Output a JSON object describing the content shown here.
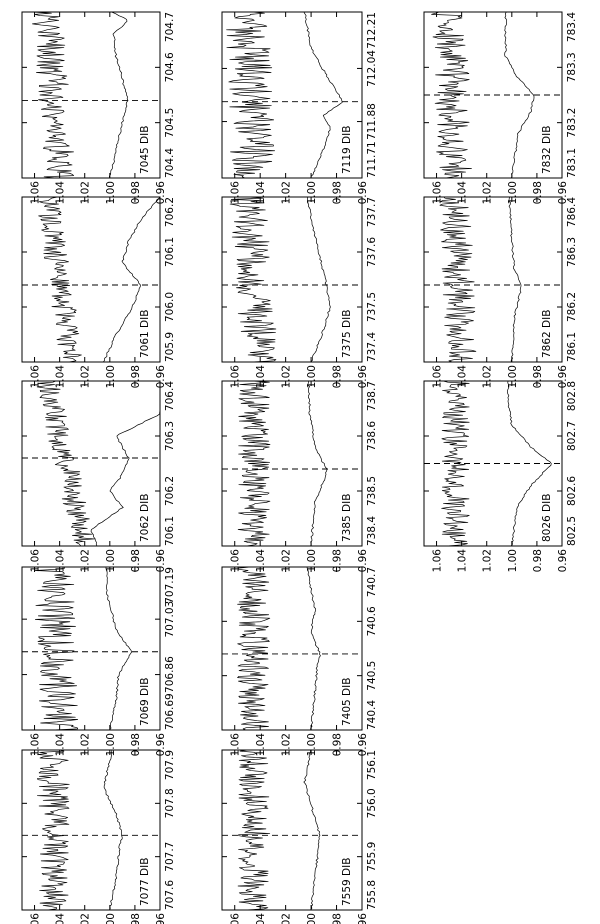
{
  "chart_data": {
    "type": "line",
    "orientation": "rotated-90-ccw",
    "panel_y_axis": {
      "ylim": [
        0.96,
        1.07
      ],
      "tick_labels": [
        "0.96",
        "0.98",
        "1.00",
        "1.02",
        "1.04",
        "1.06"
      ]
    },
    "panels": [
      {
        "id": "p7045",
        "label": "7045 DIB",
        "xlim": [
          704.4,
          704.7
        ],
        "x_ticks": [
          "704.4",
          "704.5",
          "704.6",
          "704.7"
        ],
        "center": 704.54,
        "series": [
          {
            "x": [
              704.4,
              704.45,
              704.5,
              704.54,
              704.58,
              704.62,
              704.66,
              704.685,
              704.7
            ],
            "y": [
              1.0,
              0.995,
              0.99,
              0.986,
              0.99,
              0.995,
              0.997,
              0.985,
              0.998
            ]
          },
          {
            "x": [
              704.4,
              704.7
            ],
            "y": [
              1.04,
              1.05
            ],
            "noise": 0.016
          }
        ]
      },
      {
        "id": "p7061",
        "label": "7061 DIB",
        "xlim": [
          705.9,
          706.2
        ],
        "x_ticks": [
          "705.9",
          "706.0",
          "706.1",
          "706.2"
        ],
        "center": 706.04,
        "series": [
          {
            "x": [
              705.9,
              705.95,
              706.0,
              706.04,
              706.08,
              706.12,
              706.16,
              706.2
            ],
            "y": [
              1.005,
              0.995,
              0.982,
              0.975,
              0.99,
              0.985,
              0.975,
              0.96
            ]
          },
          {
            "x": [
              705.9,
              706.2
            ],
            "y": [
              1.03,
              1.05
            ],
            "noise": 0.012
          }
        ]
      },
      {
        "id": "p7062",
        "label": "7062 DIB",
        "xlim": [
          706.1,
          706.4
        ],
        "x_ticks": [
          "706.1",
          "706.2",
          "706.3",
          "706.4"
        ],
        "center": 706.26,
        "series": [
          {
            "x": [
              706.1,
              706.13,
              706.17,
              706.2,
              706.23,
              706.26,
              706.3,
              706.34,
              706.4
            ],
            "y": [
              1.01,
              1.015,
              0.99,
              1.0,
              0.99,
              0.985,
              0.995,
              0.96,
              0.955
            ]
          },
          {
            "x": [
              706.1,
              706.4
            ],
            "y": [
              1.02,
              1.05
            ],
            "noise": 0.012
          }
        ]
      },
      {
        "id": "p7069",
        "label": "7069 DIB",
        "xlim": [
          706.69,
          707.19
        ],
        "x_ticks": [
          "706.69",
          "706.86",
          "707.03",
          "707.19"
        ],
        "center": 706.93,
        "series": [
          {
            "x": [
              706.69,
              706.78,
              706.86,
              706.93,
              707.0,
              707.1,
              707.19
            ],
            "y": [
              1.0,
              0.995,
              0.993,
              0.983,
              0.995,
              1.002,
              1.003
            ]
          },
          {
            "x": [
              706.69,
              707.19
            ],
            "y": [
              1.04,
              1.045
            ],
            "noise": 0.02
          }
        ]
      },
      {
        "id": "p7077",
        "label": "7077 DIB",
        "xlim": [
          707.6,
          707.9
        ],
        "x_ticks": [
          "707.6",
          "707.7",
          "707.8",
          "707.9"
        ],
        "center": 707.74,
        "series": [
          {
            "x": [
              707.6,
              707.66,
              707.72,
              707.74,
              707.78,
              707.83,
              707.9
            ],
            "y": [
              1.0,
              0.995,
              0.992,
              0.99,
              0.995,
              1.005,
              0.998
            ]
          },
          {
            "x": [
              707.6,
              707.9
            ],
            "y": [
              1.045,
              1.045
            ],
            "noise": 0.016
          }
        ]
      },
      {
        "id": "p7119",
        "label": "7119 DIB",
        "xlim": [
          711.71,
          712.21
        ],
        "x_ticks": [
          "711.71",
          "711.88",
          "712.04",
          "712.21"
        ],
        "center": 711.94,
        "series": [
          {
            "x": [
              711.71,
              711.8,
              711.86,
              711.9,
              711.94,
              712.0,
              712.1,
              712.21
            ],
            "y": [
              1.0,
              0.99,
              0.985,
              0.99,
              0.975,
              0.985,
              1.0,
              1.005
            ]
          },
          {
            "x": [
              711.71,
              712.21
            ],
            "y": [
              1.045,
              1.05
            ],
            "noise": 0.022
          }
        ]
      },
      {
        "id": "p7375",
        "label": "7375 DIB",
        "xlim": [
          737.4,
          737.7
        ],
        "x_ticks": [
          "737.4",
          "737.5",
          "737.6",
          "737.7"
        ],
        "center": 737.54,
        "series": [
          {
            "x": [
              737.4,
              737.46,
              737.5,
              737.54,
              737.6,
              737.66,
              737.7
            ],
            "y": [
              1.0,
              0.99,
              0.985,
              0.988,
              0.994,
              1.0,
              1.003
            ]
          },
          {
            "x": [
              737.4,
              737.7
            ],
            "y": [
              1.04,
              1.05
            ],
            "noise": 0.018
          }
        ]
      },
      {
        "id": "p7385",
        "label": "7385 DIB",
        "xlim": [
          738.4,
          738.7
        ],
        "x_ticks": [
          "738.4",
          "738.5",
          "738.6",
          "738.7"
        ],
        "center": 738.54,
        "series": [
          {
            "x": [
              738.4,
              738.48,
              738.52,
              738.54,
              738.58,
              738.64,
              738.7
            ],
            "y": [
              1.0,
              0.997,
              0.99,
              0.988,
              0.997,
              1.001,
              1.002
            ]
          },
          {
            "x": [
              738.4,
              738.7
            ],
            "y": [
              1.045,
              1.045
            ],
            "noise": 0.016
          }
        ]
      },
      {
        "id": "p7405",
        "label": "7405 DIB",
        "xlim": [
          740.4,
          740.7
        ],
        "x_ticks": [
          "740.4",
          "740.5",
          "740.6",
          "740.7"
        ],
        "center": 740.54,
        "series": [
          {
            "x": [
              740.4,
              740.47,
              740.52,
              740.54,
              740.58,
              740.62,
              740.66,
              740.7
            ],
            "y": [
              1.0,
              0.997,
              0.995,
              0.993,
              1.0,
              0.997,
              1.0,
              1.003
            ]
          },
          {
            "x": [
              740.4,
              740.7
            ],
            "y": [
              1.045,
              1.045
            ],
            "noise": 0.016
          }
        ]
      },
      {
        "id": "p7559",
        "label": "7559 DIB",
        "xlim": [
          755.8,
          756.1
        ],
        "x_ticks": [
          "755.8",
          "755.9",
          "756.0",
          "756.1"
        ],
        "center": 755.94,
        "series": [
          {
            "x": [
              755.8,
              755.86,
              755.9,
              755.94,
              755.98,
              756.04,
              756.1
            ],
            "y": [
              1.0,
              0.997,
              0.995,
              0.993,
              0.998,
              1.005,
              1.0
            ]
          },
          {
            "x": [
              755.8,
              756.1
            ],
            "y": [
              1.045,
              1.045
            ],
            "noise": 0.016
          }
        ]
      },
      {
        "id": "p7832",
        "label": "7832 DIB",
        "xlim": [
          783.1,
          783.4
        ],
        "x_ticks": [
          "783.1",
          "783.2",
          "783.3",
          "783.4"
        ],
        "center": 783.25,
        "series": [
          {
            "x": [
              783.1,
              783.18,
              783.22,
              783.25,
              783.28,
              783.32,
              783.4
            ],
            "y": [
              1.0,
              0.995,
              0.985,
              0.982,
              0.995,
              1.005,
              1.005
            ]
          },
          {
            "x": [
              783.1,
              783.4
            ],
            "y": [
              1.045,
              1.05
            ],
            "noise": 0.018
          }
        ]
      },
      {
        "id": "p7862",
        "label": "7862 DIB",
        "xlim": [
          786.1,
          786.4
        ],
        "x_ticks": [
          "786.1",
          "786.2",
          "786.3",
          "786.4"
        ],
        "center": 786.24,
        "series": [
          {
            "x": [
              786.1,
              786.18,
              786.22,
              786.24,
              786.27,
              786.32,
              786.4
            ],
            "y": [
              1.0,
              0.998,
              0.994,
              0.992,
              0.998,
              1.0,
              1.002
            ]
          },
          {
            "x": [
              786.1,
              786.4
            ],
            "y": [
              1.04,
              1.045
            ],
            "noise": 0.016
          }
        ]
      },
      {
        "id": "p8026",
        "label": "8026 DIB",
        "xlim": [
          802.5,
          802.8
        ],
        "x_ticks": [
          "802.5",
          "802.6",
          "802.7",
          "802.8"
        ],
        "center": 802.65,
        "series": [
          {
            "x": [
              802.5,
              802.57,
              802.61,
              802.64,
              802.65,
              802.68,
              802.72,
              802.76,
              802.8
            ],
            "y": [
              1.0,
              0.996,
              0.985,
              0.972,
              0.968,
              0.985,
              1.0,
              1.003,
              1.003
            ]
          },
          {
            "x": [
              802.5,
              802.8
            ],
            "y": [
              1.045,
              1.045
            ],
            "noise": 0.014
          }
        ]
      }
    ]
  }
}
